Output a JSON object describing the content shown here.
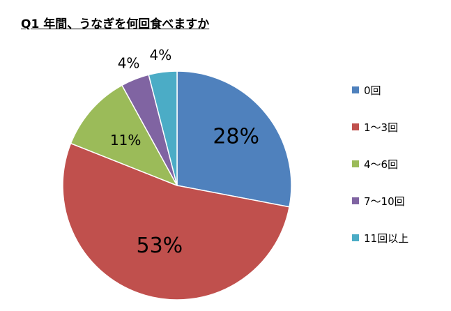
{
  "chart_data": {
    "type": "pie",
    "title": "Q1 年間、うなぎを何回食べますか",
    "slices": [
      {
        "label": "0回",
        "value": 28,
        "display": "28%",
        "color": "#4F81BD"
      },
      {
        "label": "1～3回",
        "value": 53,
        "display": "53%",
        "color": "#C0504D"
      },
      {
        "label": "4～6回",
        "value": 11,
        "display": "11%",
        "color": "#9BBB59"
      },
      {
        "label": "7～10回",
        "value": 4,
        "display": "4%",
        "color": "#8064A2"
      },
      {
        "label": "11回以上",
        "value": 4,
        "display": "4%",
        "color": "#4BACC6"
      }
    ],
    "legend_position": "right"
  }
}
